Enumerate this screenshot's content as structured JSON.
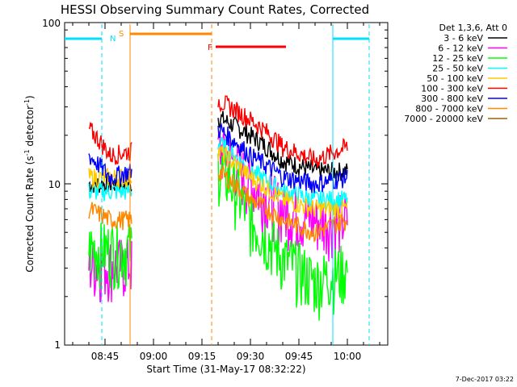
{
  "chart_data": {
    "type": "line",
    "title": "HESSI Observing Summary Count Rates, Corrected",
    "ylabel_main": "Corrected Count Rate (s",
    "ylabel_sup1": "-1",
    "ylabel_mid": " detector",
    "ylabel_sup2": "-1",
    "ylabel_end": ")",
    "xlabel": "Start Time (31-May-17 08:32:22)",
    "x_ticks": [
      "08:45",
      "09:00",
      "09:15",
      "09:30",
      "09:45",
      "10:00"
    ],
    "y_scale": "log",
    "ylim": [
      1,
      100
    ],
    "y_ticks": [
      "1",
      "10",
      "100"
    ],
    "legend_title": "Det 1,3,6, Att 0",
    "timestamp": "7-Dec-2017 03:22",
    "markers": {
      "N": "N",
      "S": "S",
      "F": "F"
    },
    "series": [
      {
        "name": "3 - 6 keV",
        "color": "#000000",
        "seg1": [
          10,
          10
        ],
        "seg2": [
          26,
          20,
          14,
          12,
          12
        ]
      },
      {
        "name": "6 - 12 keV",
        "color": "#ff00ff",
        "seg1": [
          3.2,
          3.2
        ],
        "seg2": [
          17,
          10,
          7,
          6,
          6
        ]
      },
      {
        "name": "12 - 25 keV",
        "color": "#00ff00",
        "seg1": [
          4,
          4
        ],
        "seg2": [
          13,
          6,
          3.5,
          2.5,
          3
        ]
      },
      {
        "name": "25 - 50 keV",
        "color": "#00ffff",
        "seg1": [
          9,
          9
        ],
        "seg2": [
          18,
          12,
          9,
          8,
          8
        ]
      },
      {
        "name": "50 - 100 keV",
        "color": "#ffcc00",
        "seg1": [
          11,
          11
        ],
        "seg2": [
          16,
          11,
          8,
          7,
          7
        ]
      },
      {
        "name": "100 - 300 keV",
        "color": "#ff0000",
        "seg1": [
          22,
          15,
          16
        ],
        "seg2": [
          33,
          25,
          17,
          14,
          17
        ]
      },
      {
        "name": "300 - 800 keV",
        "color": "#0000ff",
        "seg1": [
          15,
          11,
          12
        ],
        "seg2": [
          22,
          15,
          11,
          10,
          11
        ]
      },
      {
        "name": "800 - 7000 keV",
        "color": "#ff8800",
        "seg1": [
          7,
          6,
          6
        ],
        "seg2": [
          12,
          8,
          6,
          5,
          6
        ]
      },
      {
        "name": "7000 - 20000 keV",
        "color": "#996600",
        "seg1": [],
        "seg2": []
      }
    ]
  }
}
